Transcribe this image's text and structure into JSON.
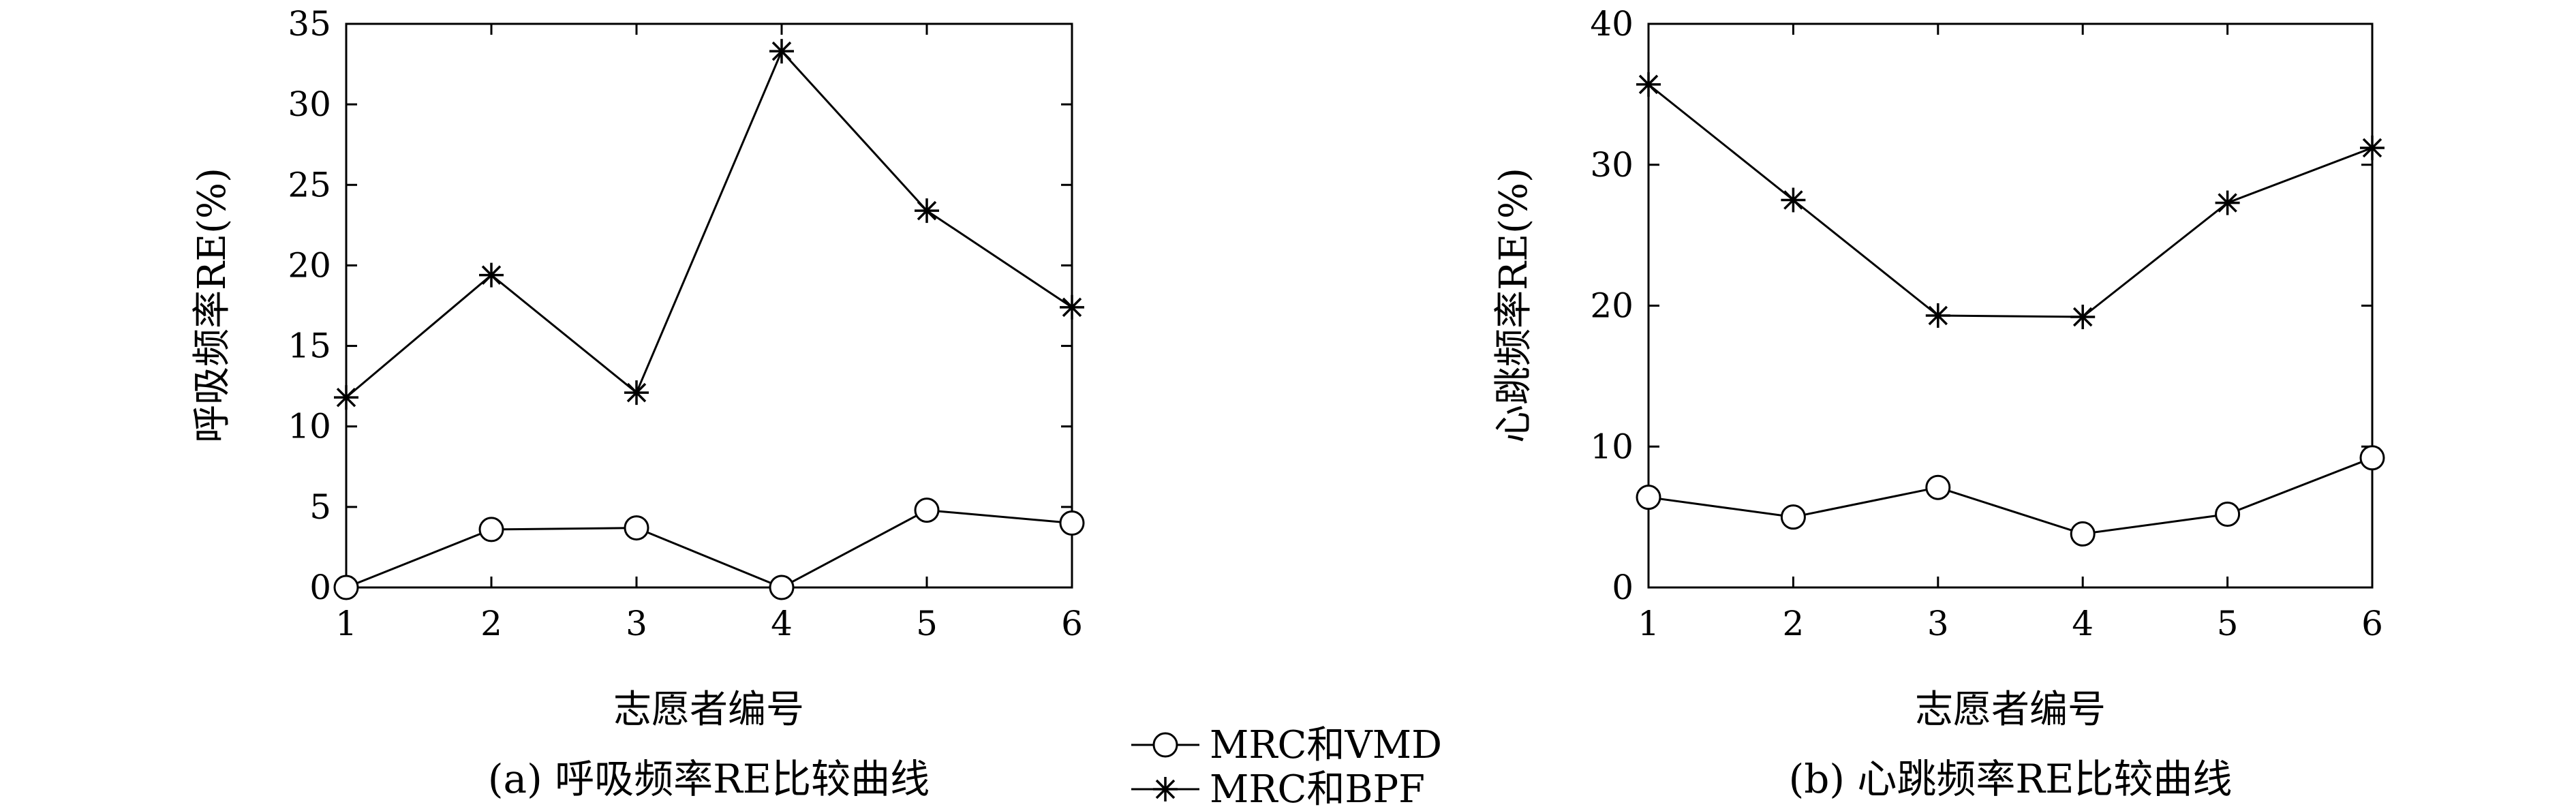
{
  "legend": [
    {
      "label": "MRC和VMD",
      "marker": "circle"
    },
    {
      "label": "MRC和BPF",
      "marker": "star"
    }
  ],
  "chart_data": [
    {
      "type": "line",
      "caption": "(a) 呼吸频率RE比较曲线",
      "xlabel": "志愿者编号",
      "ylabel": "呼吸频率RE(%)",
      "x": [
        1,
        2,
        3,
        4,
        5,
        6
      ],
      "xlim": [
        1,
        6
      ],
      "ylim": [
        0,
        35
      ],
      "xticks": [
        1,
        2,
        3,
        4,
        5,
        6
      ],
      "yticks": [
        0,
        5,
        10,
        15,
        20,
        25,
        30,
        35
      ],
      "grid": false,
      "series": [
        {
          "name": "MRC和VMD",
          "marker": "circle",
          "values": [
            0.0,
            3.6,
            3.7,
            0.0,
            4.8,
            4.0
          ]
        },
        {
          "name": "MRC和BPF",
          "marker": "star",
          "values": [
            11.8,
            19.4,
            12.1,
            33.3,
            23.4,
            17.4
          ]
        }
      ]
    },
    {
      "type": "line",
      "caption": "(b) 心跳频率RE比较曲线",
      "xlabel": "志愿者编号",
      "ylabel": "心跳频率RE(%)",
      "x": [
        1,
        2,
        3,
        4,
        5,
        6
      ],
      "xlim": [
        1,
        6
      ],
      "ylim": [
        0,
        40
      ],
      "xticks": [
        1,
        2,
        3,
        4,
        5,
        6
      ],
      "yticks": [
        0,
        10,
        20,
        30,
        40
      ],
      "grid": false,
      "series": [
        {
          "name": "MRC和VMD",
          "marker": "circle",
          "values": [
            6.4,
            5.0,
            7.1,
            3.8,
            5.2,
            9.2
          ]
        },
        {
          "name": "MRC和BPF",
          "marker": "star",
          "values": [
            35.7,
            27.5,
            19.3,
            19.2,
            27.3,
            31.2
          ]
        }
      ]
    }
  ]
}
